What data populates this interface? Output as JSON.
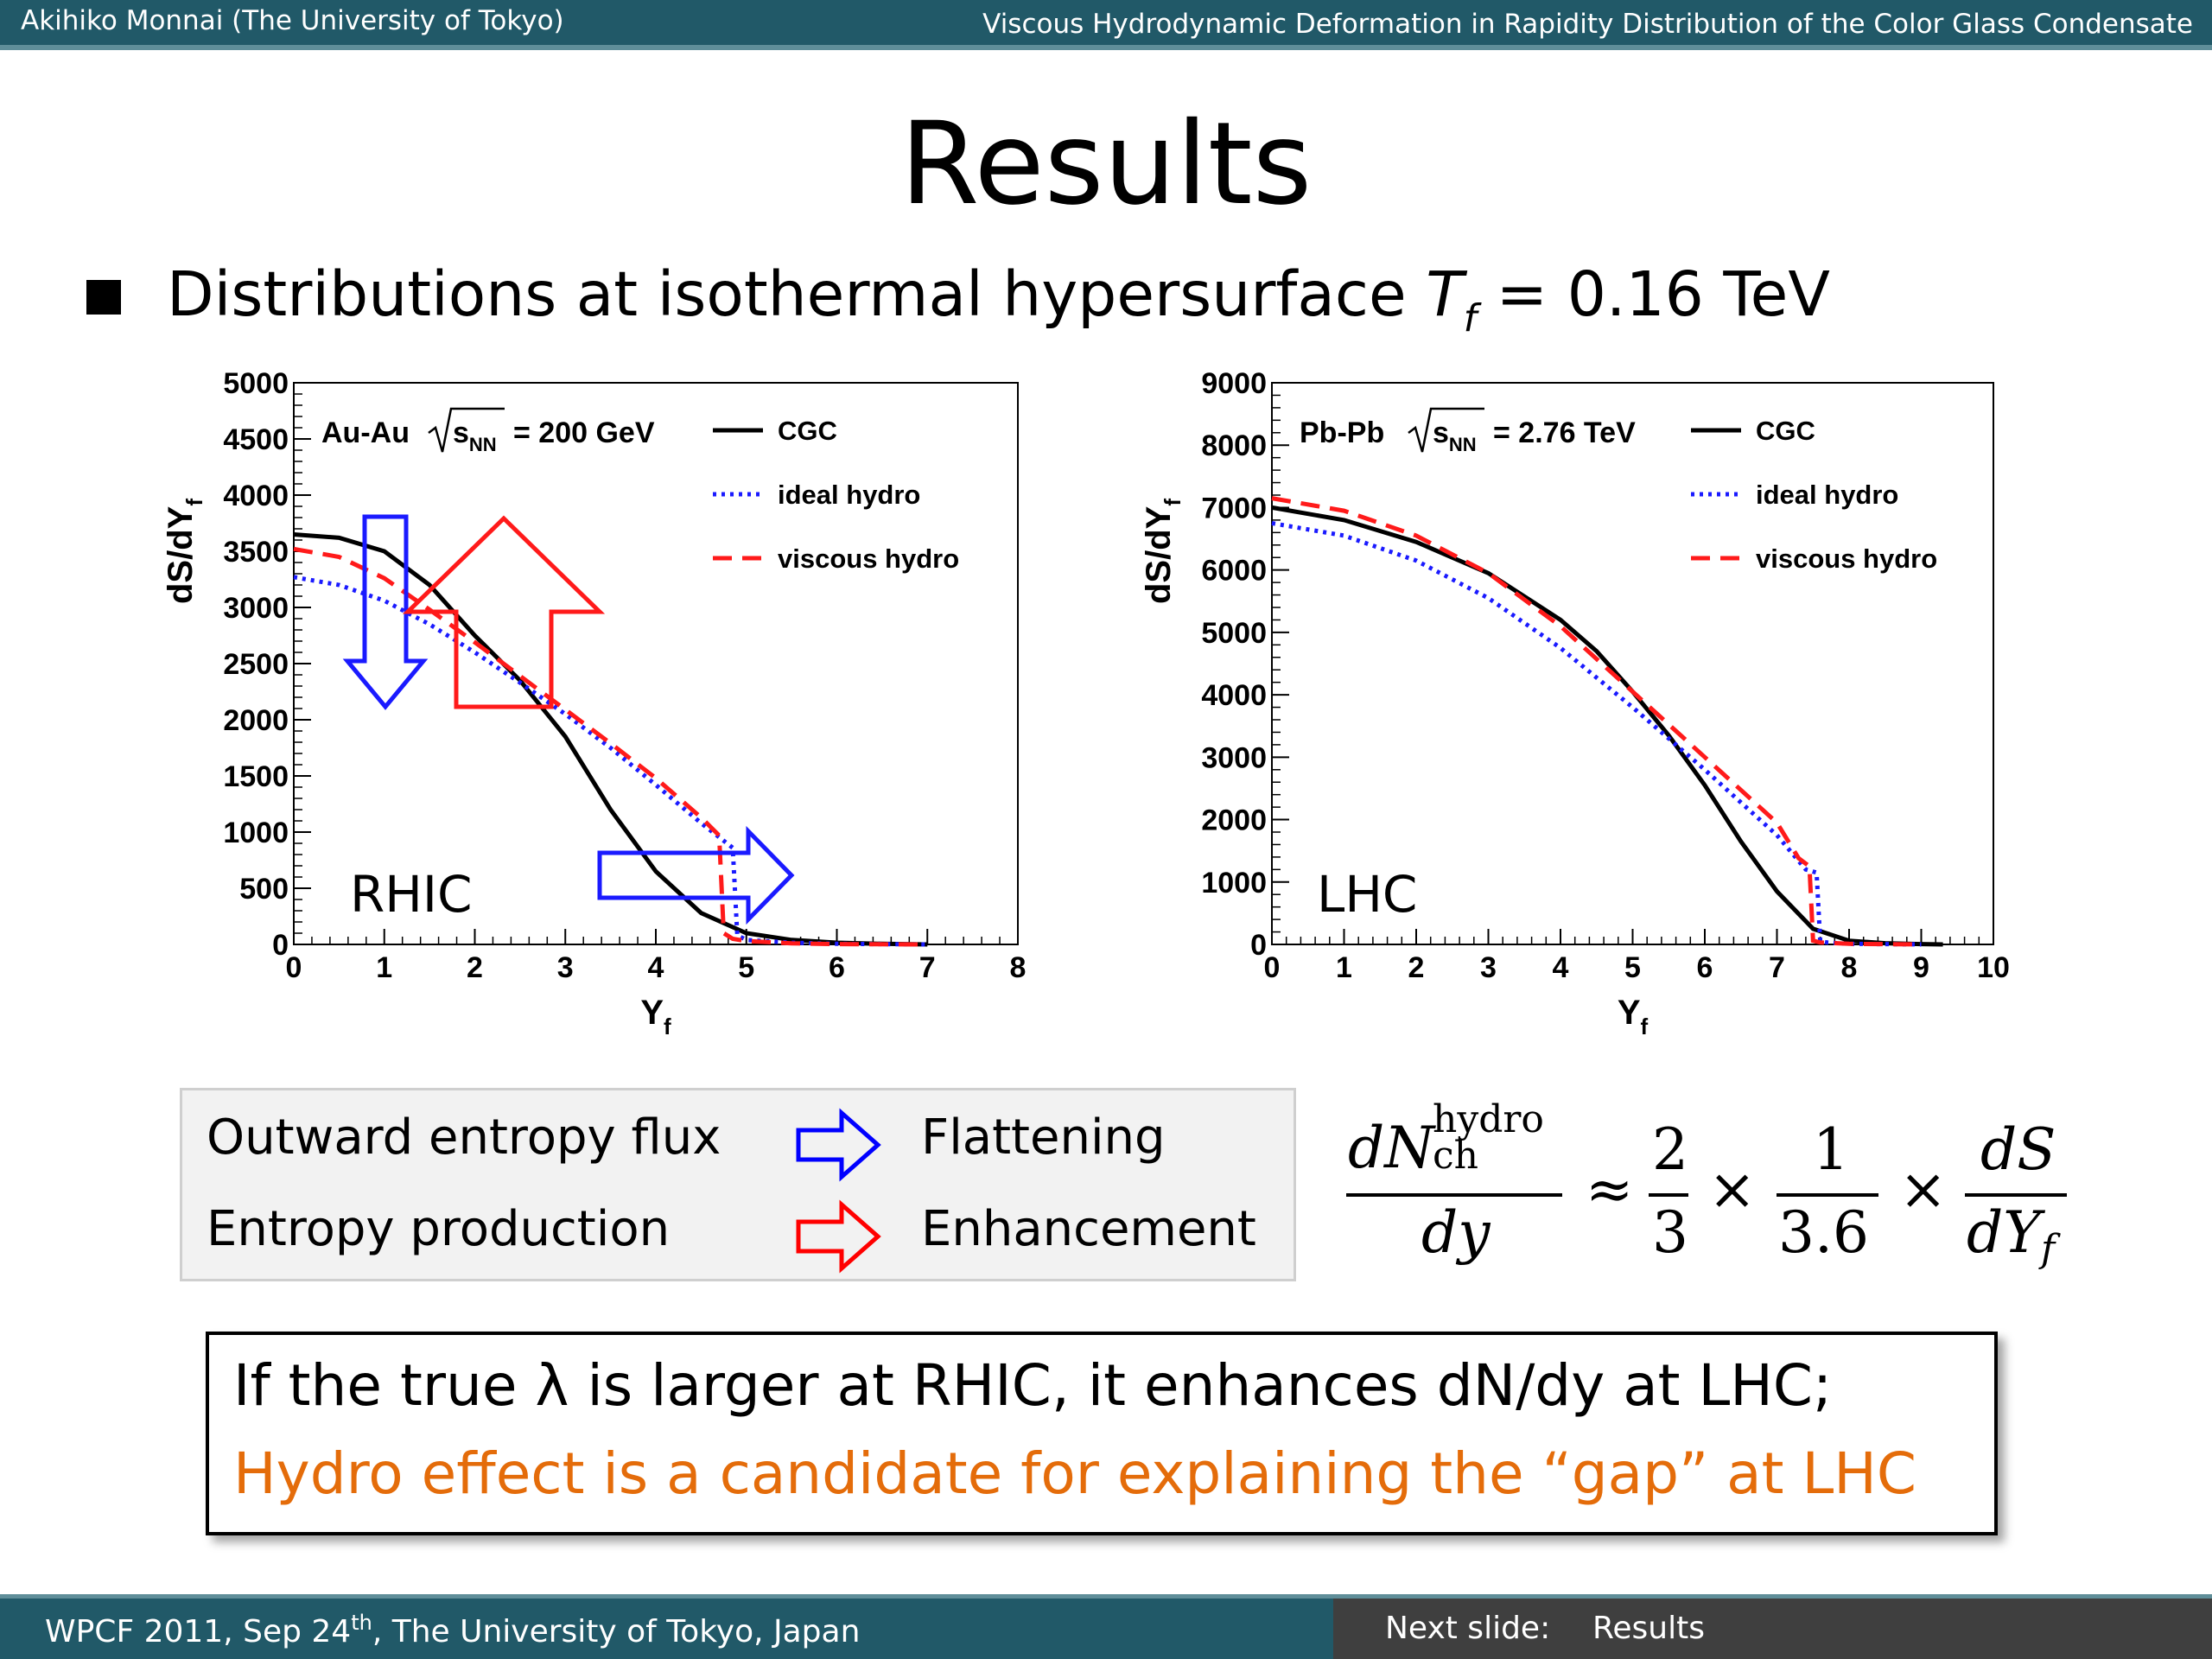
{
  "header": {
    "author": "Akihiko Monnai (The University of Tokyo)",
    "talk_title": "Viscous Hydrodynamic Deformation in Rapidity Distribution of the Color Glass Condensate"
  },
  "slide": {
    "title": "Results",
    "bullet_pre": "Distributions at isothermal hypersurface ",
    "bullet_var": "T",
    "bullet_sub": "f",
    "bullet_post": " = 0.16 TeV"
  },
  "chart_data": [
    {
      "type": "line",
      "panel_label": "RHIC",
      "system": "Au-Au",
      "energy": "= 200 GeV",
      "xlabel": "Y",
      "xlabel_sub": "f",
      "ylabel": "dS/dY",
      "ylabel_sub": "f",
      "xlim": [
        0,
        8
      ],
      "ylim": [
        0,
        5000
      ],
      "xticks": [
        0,
        1,
        2,
        3,
        4,
        5,
        6,
        7,
        8
      ],
      "yticks": [
        0,
        500,
        1000,
        1500,
        2000,
        2500,
        3000,
        3500,
        4000,
        4500,
        5000
      ],
      "series": [
        {
          "name": "CGC",
          "color": "#000000",
          "dash": "solid",
          "x": [
            0,
            0.5,
            1,
            1.5,
            2,
            2.5,
            3,
            3.5,
            4,
            4.5,
            5,
            5.5,
            6,
            6.5,
            7
          ],
          "y": [
            3650,
            3620,
            3500,
            3200,
            2750,
            2350,
            1850,
            1200,
            650,
            280,
            100,
            40,
            15,
            5,
            0
          ]
        },
        {
          "name": "ideal hydro",
          "color": "#1a1aff",
          "dash": "dot",
          "x": [
            0,
            0.5,
            1,
            1.5,
            2,
            2.5,
            3,
            3.5,
            4,
            4.5,
            4.85,
            4.9,
            5,
            5.5,
            6,
            7
          ],
          "y": [
            3270,
            3200,
            3060,
            2850,
            2600,
            2330,
            2050,
            1750,
            1420,
            1080,
            860,
            80,
            40,
            15,
            5,
            0
          ]
        },
        {
          "name": "viscous hydro",
          "color": "#ff1a1a",
          "dash": "dash",
          "x": [
            0,
            0.5,
            1,
            1.5,
            2,
            2.5,
            3,
            3.5,
            4,
            4.5,
            4.7,
            4.75,
            4.85,
            5,
            5.5,
            6,
            7
          ],
          "y": [
            3520,
            3450,
            3260,
            2980,
            2690,
            2390,
            2090,
            1790,
            1480,
            1130,
            970,
            100,
            50,
            30,
            10,
            3,
            0
          ]
        }
      ]
    },
    {
      "type": "line",
      "panel_label": "LHC",
      "system": "Pb-Pb",
      "energy": "= 2.76 TeV",
      "xlabel": "Y",
      "xlabel_sub": "f",
      "ylabel": "dS/dY",
      "ylabel_sub": "f",
      "xlim": [
        0,
        10
      ],
      "ylim": [
        0,
        9000
      ],
      "xticks": [
        0,
        1,
        2,
        3,
        4,
        5,
        6,
        7,
        8,
        9,
        10
      ],
      "yticks": [
        0,
        1000,
        2000,
        3000,
        4000,
        5000,
        6000,
        7000,
        8000,
        9000
      ],
      "series": [
        {
          "name": "CGC",
          "color": "#000000",
          "dash": "solid",
          "x": [
            0,
            1,
            2,
            3,
            4,
            4.5,
            5,
            5.5,
            6,
            6.5,
            7,
            7.5,
            8,
            8.5,
            9,
            9.3
          ],
          "y": [
            7000,
            6800,
            6450,
            5950,
            5200,
            4700,
            4050,
            3350,
            2550,
            1650,
            850,
            250,
            60,
            20,
            5,
            0
          ]
        },
        {
          "name": "ideal hydro",
          "color": "#1a1aff",
          "dash": "dot",
          "x": [
            0,
            1,
            2,
            3,
            4,
            5,
            6,
            7,
            7.4,
            7.55,
            7.6,
            7.7,
            8,
            9
          ],
          "y": [
            6750,
            6550,
            6150,
            5550,
            4750,
            3800,
            2800,
            1750,
            1200,
            1150,
            50,
            30,
            10,
            0
          ]
        },
        {
          "name": "viscous hydro",
          "color": "#ff1a1a",
          "dash": "dash",
          "x": [
            0,
            1,
            2,
            3,
            4,
            5,
            6,
            7,
            7.3,
            7.45,
            7.5,
            7.6,
            8,
            9
          ],
          "y": [
            7150,
            6950,
            6550,
            5950,
            5100,
            4050,
            3000,
            1950,
            1380,
            1250,
            60,
            30,
            10,
            0
          ]
        }
      ]
    }
  ],
  "legend_box": {
    "row1_left": "Outward entropy flux",
    "row1_right": "Flattening",
    "row2_left": "Entropy production",
    "row2_right": "Enhancement",
    "arrow1_color": "#0000ff",
    "arrow2_color": "#ff0000"
  },
  "formula": {
    "lhs_num_main": "dN",
    "lhs_num_sup": "hydro",
    "lhs_num_sub": "ch",
    "lhs_den": "dy",
    "approx": "≈",
    "f1_num": "2",
    "f1_den": "3",
    "times": "×",
    "f2_num": "1",
    "f2_den": "3.6",
    "f3_num": "dS",
    "f3_den_main": "dY",
    "f3_den_sub": "f"
  },
  "conclusion": {
    "line1": "If the true λ is larger at RHIC, it enhances dN/dy at LHC;",
    "line2": "Hydro effect is a candidate for explaining the “gap” at LHC",
    "line2_color": "#e46c0a"
  },
  "footer": {
    "event_pre": "WPCF 2011, Sep 24",
    "event_sup": "th",
    "event_post": ", The University of Tokyo, Japan",
    "next_label": "Next slide:",
    "next_value": "Results"
  }
}
